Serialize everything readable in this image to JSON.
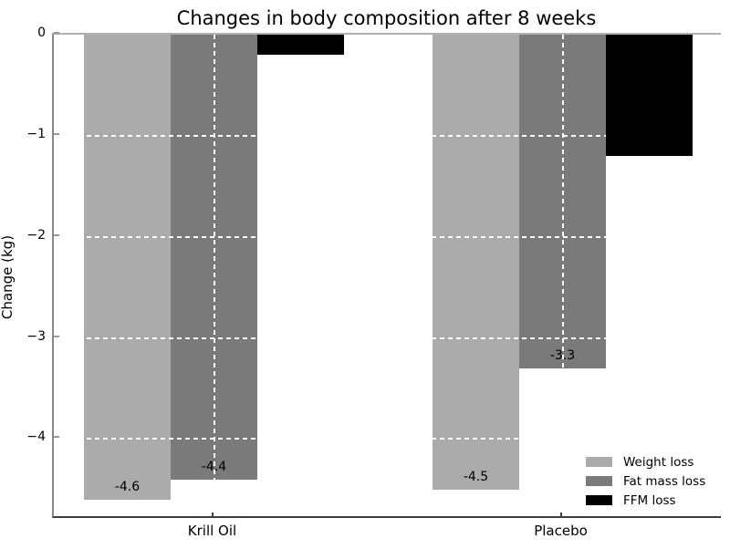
{
  "chart_data": {
    "type": "bar",
    "title": "Changes in body composition after 8 weeks",
    "xlabel": "",
    "ylabel": "Change (kg)",
    "categories": [
      "Krill Oil",
      "Placebo"
    ],
    "series": [
      {
        "name": "Weight loss",
        "color": "#ababab",
        "values": [
          -4.6,
          -4.5
        ],
        "bar_labels": [
          "-4.6",
          "-4.5"
        ]
      },
      {
        "name": "Fat mass loss",
        "color": "#7a7a7a",
        "values": [
          -4.4,
          -3.3
        ],
        "bar_labels": [
          "-4.4",
          "-3.3"
        ]
      },
      {
        "name": "FFM loss",
        "color": "#000000",
        "values": [
          -0.2,
          -1.2
        ],
        "bar_labels": [
          null,
          null
        ]
      }
    ],
    "ylim": [
      -4.8,
      0
    ],
    "yticks": [
      0,
      -1,
      -2,
      -3,
      -4
    ],
    "ytick_labels": [
      "0",
      "−1",
      "−2",
      "−3",
      "−4"
    ],
    "grid": "white dashed, drawn over gray bars, under black bars",
    "legend_position": "lower right",
    "background_color": "#ffffff"
  }
}
